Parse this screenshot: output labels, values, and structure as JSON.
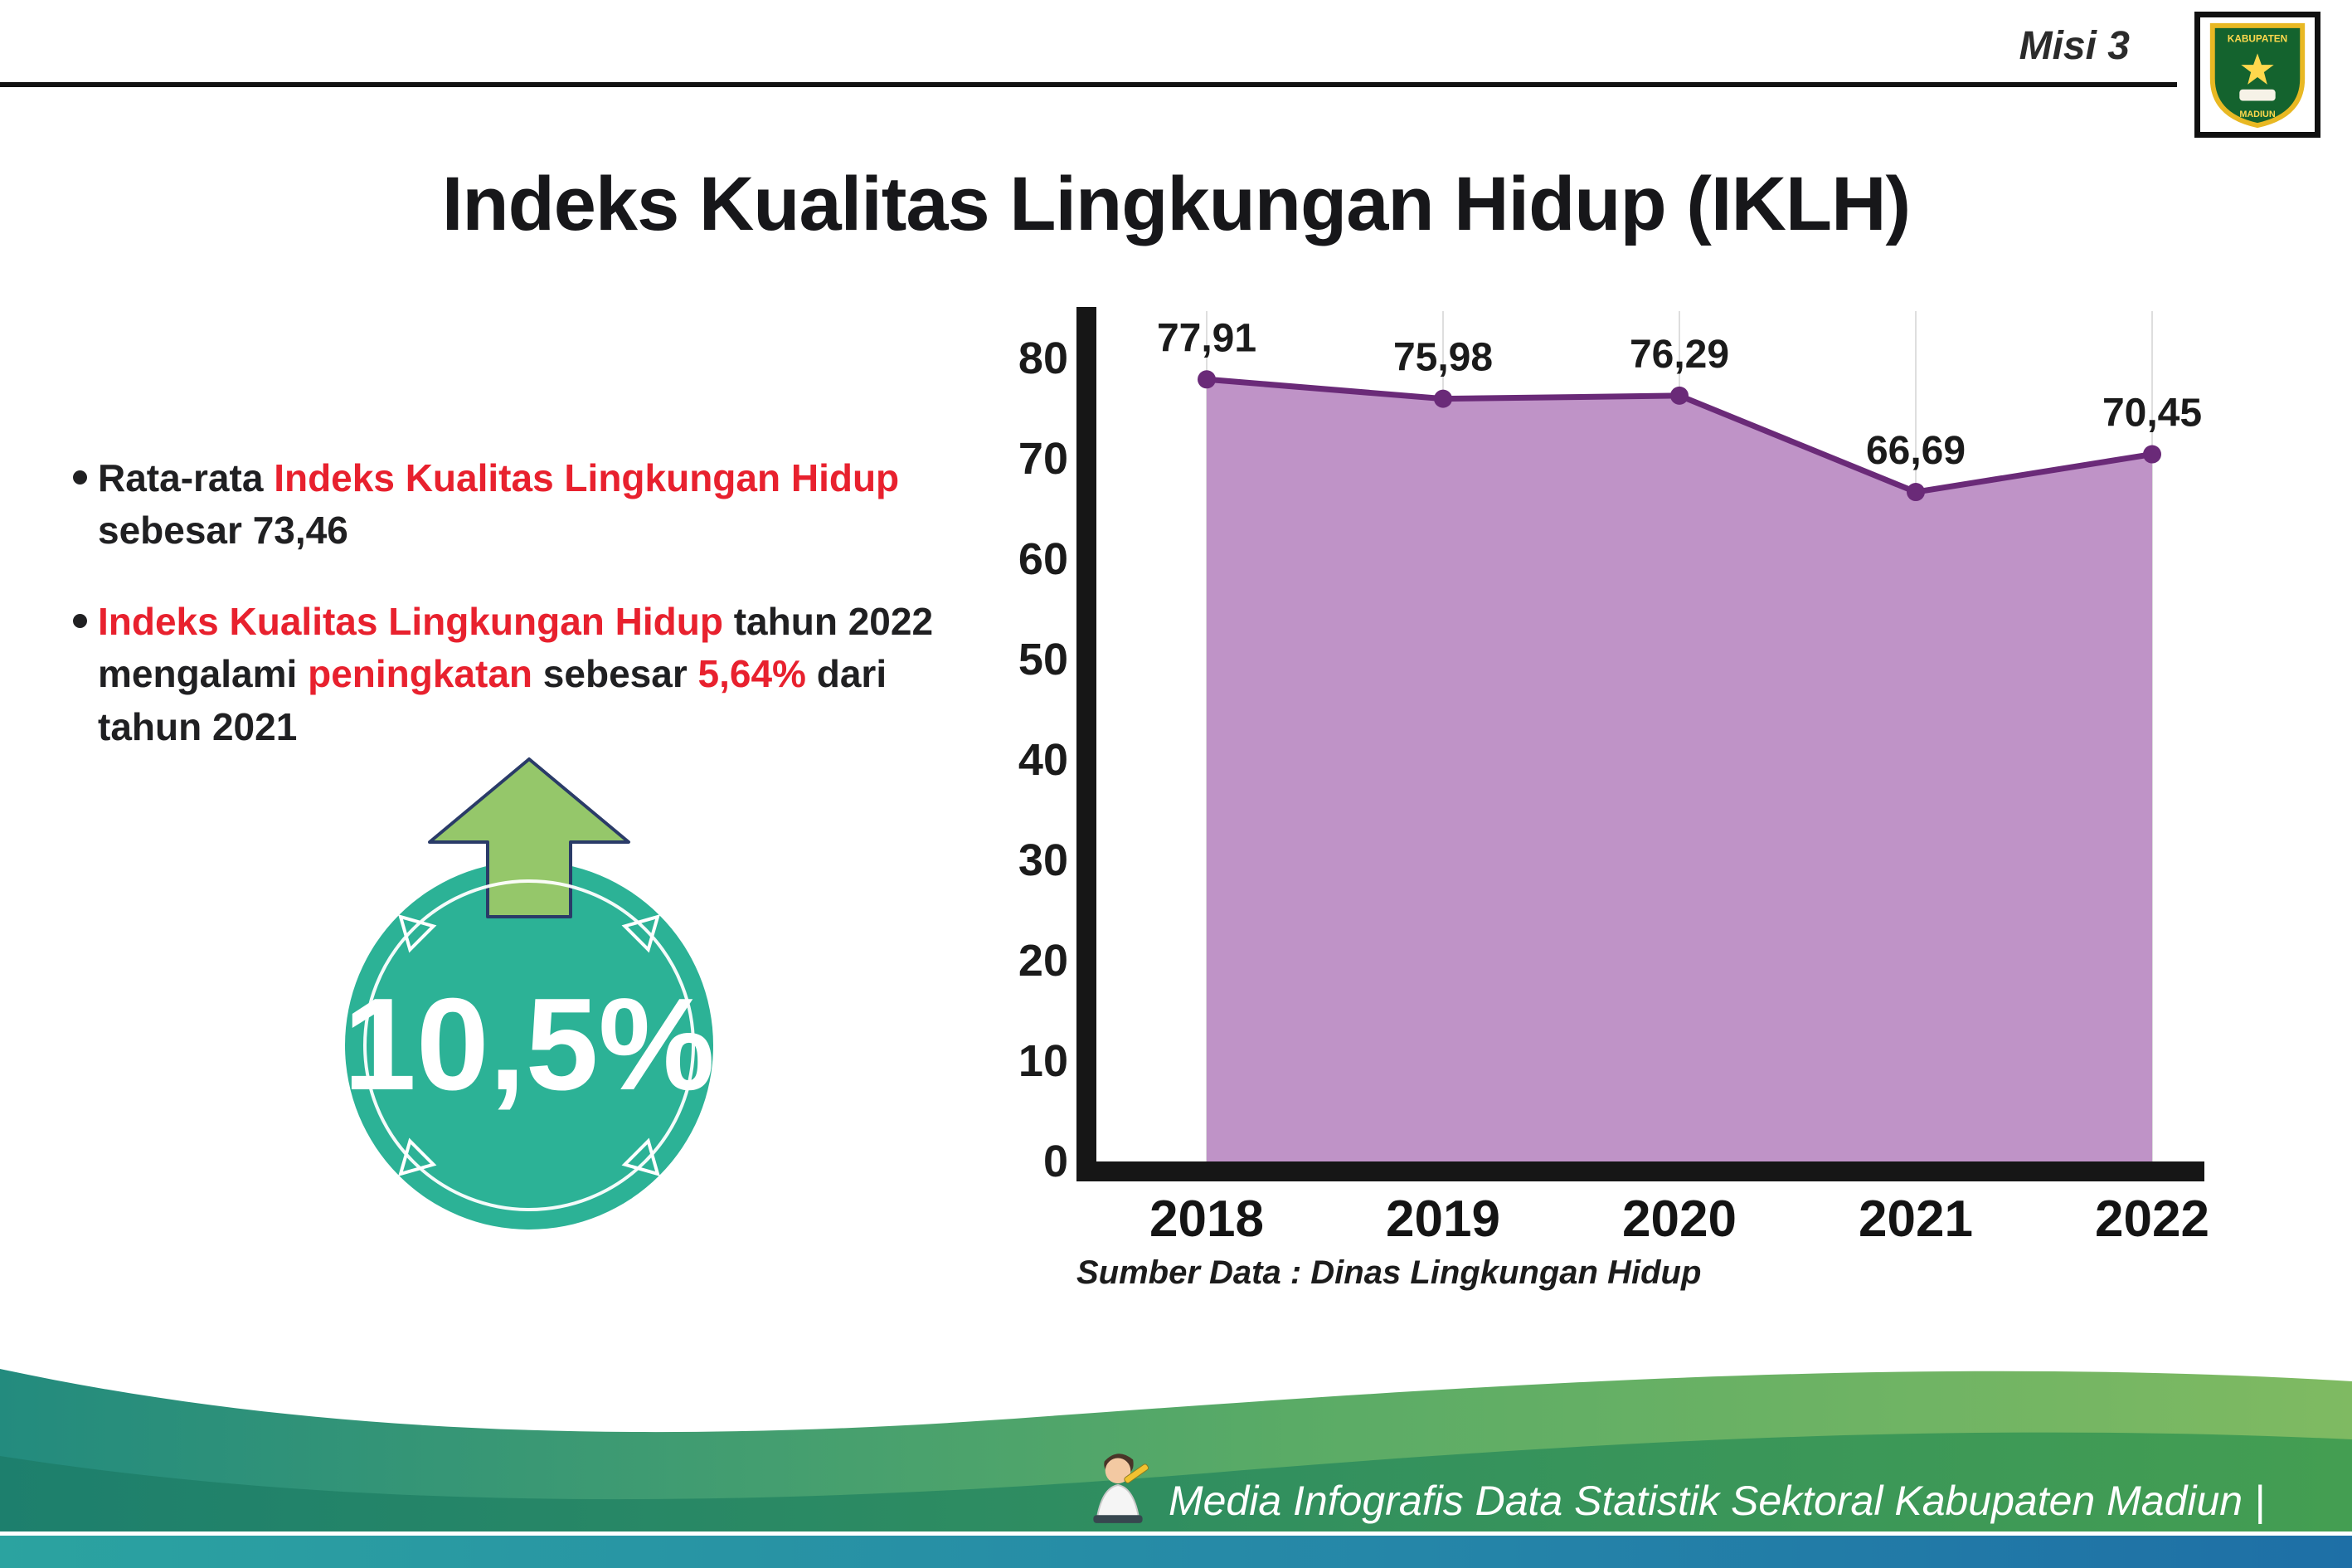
{
  "header": {
    "misi_label": "Misi 3",
    "title": "Indeks Kualitas Lingkungan Hidup (IKLH)"
  },
  "logo": {
    "top_text": "KABUPATEN",
    "bottom_text": "MADIUN"
  },
  "colors": {
    "red": "#e8212e",
    "dark": "#202022",
    "teal_badge": "#2cb296",
    "arrow_green": "#95c76a",
    "arrow_outline": "#2a3b68",
    "area_fill": "#bf93c7",
    "line_purple": "#6a2a78",
    "axis_black": "#161616",
    "grid_gray": "#dedede"
  },
  "bullets": [
    {
      "segments": [
        {
          "text": "Rata-rata ",
          "color": "dark"
        },
        {
          "text": "Indeks Kualitas Lingkungan Hidup",
          "color": "red"
        },
        {
          "text": " sebesar 73,46",
          "color": "dark"
        }
      ]
    },
    {
      "segments": [
        {
          "text": "Indeks Kualitas Lingkungan Hidup",
          "color": "red"
        },
        {
          "text": " tahun 2022 mengalami ",
          "color": "dark"
        },
        {
          "text": "peningkatan",
          "color": "red"
        },
        {
          "text": " sebesar ",
          "color": "dark"
        },
        {
          "text": "5,64%",
          "color": "red"
        },
        {
          "text": " dari tahun 2021",
          "color": "dark"
        }
      ]
    }
  ],
  "badge": {
    "value": "10,5%",
    "icon": "arrow-up-icon"
  },
  "chart_data": {
    "type": "area",
    "title": "",
    "categories": [
      "2018",
      "2019",
      "2020",
      "2021",
      "2022"
    ],
    "values": [
      77.91,
      75.98,
      76.29,
      66.69,
      70.45
    ],
    "value_labels": [
      "77,91",
      "75,98",
      "76,29",
      "66,69",
      "70,45"
    ],
    "xlabel": "",
    "ylabel": "",
    "ylim": [
      0,
      80
    ],
    "yticks": [
      0,
      10,
      20,
      30,
      40,
      50,
      60,
      70,
      80
    ],
    "grid": "vertical-light",
    "legend": "none",
    "source": "Sumber Data : Dinas Lingkungan Hidup"
  },
  "footer": {
    "credit": "Media Infografis Data Statistik Sektoral Kabupaten Madiun |"
  }
}
